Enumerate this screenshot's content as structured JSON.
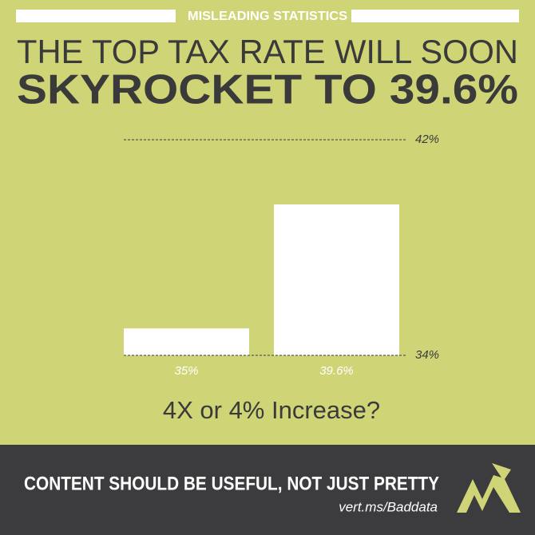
{
  "chart_data": {
    "type": "bar",
    "tag": "MISLEADING STATISTICS",
    "title": [
      "THE TOP TAX RATE WILL SOON",
      "SKYROCKET TO 39.6%"
    ],
    "values": [
      35,
      39.6
    ],
    "value_labels": [
      "35%",
      "39.6%"
    ],
    "color": "#ffffff",
    "ylim": [
      34,
      42
    ],
    "yticks": [
      {
        "value": 34,
        "label": "34%"
      },
      {
        "value": 42,
        "label": "42%"
      }
    ],
    "grid": true,
    "annotation": "4X or 4% Increase?"
  },
  "footer": {
    "text": "CONTENT SHOULD BE USEFUL, NOT JUST PRETTY",
    "url": "vert.ms/Baddata"
  }
}
